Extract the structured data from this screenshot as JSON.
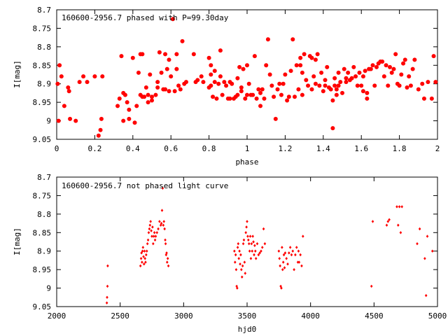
{
  "colors": {
    "points": "#ff0000",
    "axes": "#000000",
    "background": "#ffffff"
  },
  "chart_data": [
    {
      "type": "scatter",
      "title": "160600-2956.7 phased with P=99.30day",
      "xlabel": "phase",
      "ylabel": "I[mag]",
      "xlim": [
        0,
        2
      ],
      "ylim": [
        9.05,
        8.7
      ],
      "y_inverted": true,
      "grid": false,
      "marker": "filled-circle-large",
      "xticks": [
        "0",
        "0.2",
        "0.4",
        "0.6",
        "0.8",
        "1",
        "1.2",
        "1.4",
        "1.6",
        "1.8",
        "2"
      ],
      "yticks": [
        "8.7",
        "8.75",
        "8.8",
        "8.85",
        "8.9",
        "8.95",
        "9",
        "9.05"
      ],
      "points": [
        [
          0.005,
          8.9
        ],
        [
          0.01,
          9.0
        ],
        [
          0.015,
          8.85
        ],
        [
          0.025,
          8.88
        ],
        [
          0.04,
          8.96
        ],
        [
          0.06,
          8.91
        ],
        [
          0.065,
          8.92
        ],
        [
          0.07,
          8.995
        ],
        [
          0.1,
          9.0
        ],
        [
          0.12,
          8.895
        ],
        [
          0.14,
          8.88
        ],
        [
          0.16,
          8.895
        ],
        [
          0.2,
          8.88
        ],
        [
          0.22,
          9.04
        ],
        [
          0.23,
          9.025
        ],
        [
          0.235,
          8.995
        ],
        [
          0.24,
          8.88
        ],
        [
          0.32,
          8.96
        ],
        [
          0.33,
          8.94
        ],
        [
          0.34,
          8.825
        ],
        [
          0.35,
          9.0
        ],
        [
          0.35,
          8.925
        ],
        [
          0.36,
          8.93
        ],
        [
          0.37,
          8.95
        ],
        [
          0.38,
          8.97
        ],
        [
          0.38,
          8.995
        ],
        [
          0.4,
          8.83
        ],
        [
          0.41,
          9.005
        ],
        [
          0.42,
          8.96
        ],
        [
          0.43,
          8.87
        ],
        [
          0.44,
          8.82
        ],
        [
          0.44,
          8.93
        ],
        [
          0.45,
          8.82
        ],
        [
          0.45,
          8.935
        ],
        [
          0.46,
          8.935
        ],
        [
          0.47,
          8.91
        ],
        [
          0.48,
          8.93
        ],
        [
          0.48,
          8.95
        ],
        [
          0.49,
          8.875
        ],
        [
          0.5,
          8.935
        ],
        [
          0.5,
          8.945
        ],
        [
          0.52,
          8.93
        ],
        [
          0.53,
          8.895
        ],
        [
          0.53,
          8.91
        ],
        [
          0.54,
          8.815
        ],
        [
          0.55,
          8.87
        ],
        [
          0.56,
          8.915
        ],
        [
          0.57,
          8.82
        ],
        [
          0.57,
          8.915
        ],
        [
          0.58,
          8.86
        ],
        [
          0.59,
          8.92
        ],
        [
          0.59,
          8.835
        ],
        [
          0.6,
          8.88
        ],
        [
          0.61,
          8.725
        ],
        [
          0.62,
          8.92
        ],
        [
          0.63,
          8.86
        ],
        [
          0.63,
          8.82
        ],
        [
          0.64,
          8.905
        ],
        [
          0.65,
          8.915
        ],
        [
          0.66,
          8.785
        ],
        [
          0.67,
          8.9
        ],
        [
          0.68,
          8.895
        ],
        [
          0.72,
          8.82
        ],
        [
          0.73,
          8.895
        ],
        [
          0.74,
          8.89
        ],
        [
          0.76,
          8.88
        ],
        [
          0.77,
          8.895
        ],
        [
          0.8,
          8.91
        ],
        [
          0.8,
          8.83
        ],
        [
          0.81,
          8.905
        ],
        [
          0.81,
          8.875
        ],
        [
          0.81,
          8.85
        ],
        [
          0.82,
          8.935
        ],
        [
          0.83,
          8.895
        ],
        [
          0.83,
          8.865
        ],
        [
          0.84,
          8.94
        ],
        [
          0.85,
          8.9
        ],
        [
          0.86,
          8.88
        ],
        [
          0.86,
          8.81
        ],
        [
          0.87,
          8.93
        ],
        [
          0.88,
          8.895
        ],
        [
          0.89,
          8.905
        ],
        [
          0.9,
          8.94
        ],
        [
          0.91,
          8.895
        ],
        [
          0.91,
          8.94
        ],
        [
          0.92,
          8.9
        ],
        [
          0.93,
          8.94
        ],
        [
          0.94,
          8.935
        ],
        [
          0.95,
          8.93
        ],
        [
          0.95,
          8.885
        ],
        [
          0.96,
          8.855
        ],
        [
          0.97,
          8.92
        ],
        [
          0.97,
          8.91
        ],
        [
          0.98,
          8.86
        ],
        [
          0.99,
          8.94
        ],
        [
          1.0,
          8.85
        ],
        [
          1.0,
          8.93
        ],
        [
          1.01,
          8.9
        ],
        [
          1.02,
          8.93
        ],
        [
          1.03,
          8.93
        ],
        [
          1.04,
          8.825
        ],
        [
          1.05,
          8.94
        ],
        [
          1.06,
          8.915
        ],
        [
          1.07,
          8.96
        ],
        [
          1.07,
          8.925
        ],
        [
          1.08,
          8.915
        ],
        [
          1.09,
          8.94
        ],
        [
          1.1,
          8.85
        ],
        [
          1.11,
          8.78
        ],
        [
          1.12,
          8.875
        ],
        [
          1.13,
          8.905
        ],
        [
          1.14,
          8.935
        ],
        [
          1.15,
          8.995
        ],
        [
          1.16,
          8.915
        ],
        [
          1.17,
          8.9
        ],
        [
          1.18,
          8.93
        ],
        [
          1.19,
          8.9
        ],
        [
          1.2,
          8.875
        ],
        [
          1.21,
          8.945
        ],
        [
          1.22,
          8.935
        ],
        [
          1.23,
          8.865
        ],
        [
          1.24,
          8.78
        ],
        [
          1.25,
          8.935
        ],
        [
          1.26,
          8.85
        ],
        [
          1.27,
          8.915
        ],
        [
          1.28,
          8.85
        ],
        [
          1.28,
          8.83
        ],
        [
          1.29,
          8.93
        ],
        [
          1.29,
          8.87
        ],
        [
          1.3,
          8.82
        ],
        [
          1.31,
          8.89
        ],
        [
          1.32,
          8.905
        ],
        [
          1.33,
          8.825
        ],
        [
          1.34,
          8.915
        ],
        [
          1.34,
          8.83
        ],
        [
          1.35,
          8.88
        ],
        [
          1.36,
          8.9
        ],
        [
          1.36,
          8.835
        ],
        [
          1.37,
          8.82
        ],
        [
          1.38,
          8.905
        ],
        [
          1.39,
          8.87
        ],
        [
          1.4,
          8.92
        ],
        [
          1.41,
          8.905
        ],
        [
          1.41,
          8.89
        ],
        [
          1.42,
          8.855
        ],
        [
          1.43,
          8.91
        ],
        [
          1.44,
          8.915
        ],
        [
          1.45,
          9.02
        ],
        [
          1.45,
          8.945
        ],
        [
          1.46,
          8.905
        ],
        [
          1.46,
          8.885
        ],
        [
          1.47,
          8.915
        ],
        [
          1.47,
          8.93
        ],
        [
          1.48,
          8.905
        ],
        [
          1.48,
          8.87
        ],
        [
          1.49,
          8.895
        ],
        [
          1.5,
          8.925
        ],
        [
          1.51,
          8.86
        ],
        [
          1.52,
          8.895
        ],
        [
          1.52,
          8.885
        ],
        [
          1.53,
          8.87
        ],
        [
          1.54,
          8.89
        ],
        [
          1.55,
          8.885
        ],
        [
          1.56,
          8.855
        ],
        [
          1.57,
          8.88
        ],
        [
          1.58,
          8.905
        ],
        [
          1.59,
          8.87
        ],
        [
          1.6,
          8.905
        ],
        [
          1.61,
          8.92
        ],
        [
          1.61,
          8.88
        ],
        [
          1.62,
          8.865
        ],
        [
          1.63,
          8.925
        ],
        [
          1.63,
          8.94
        ],
        [
          1.64,
          8.86
        ],
        [
          1.65,
          8.86
        ],
        [
          1.66,
          8.85
        ],
        [
          1.67,
          8.905
        ],
        [
          1.68,
          8.855
        ],
        [
          1.69,
          8.845
        ],
        [
          1.7,
          8.84
        ],
        [
          1.71,
          8.84
        ],
        [
          1.72,
          8.88
        ],
        [
          1.73,
          8.85
        ],
        [
          1.74,
          8.905
        ],
        [
          1.75,
          8.855
        ],
        [
          1.76,
          8.87
        ],
        [
          1.77,
          8.86
        ],
        [
          1.78,
          8.82
        ],
        [
          1.79,
          8.9
        ],
        [
          1.8,
          8.905
        ],
        [
          1.81,
          8.875
        ],
        [
          1.82,
          8.845
        ],
        [
          1.83,
          8.835
        ],
        [
          1.84,
          8.91
        ],
        [
          1.85,
          8.88
        ],
        [
          1.86,
          8.905
        ],
        [
          1.87,
          8.86
        ],
        [
          1.88,
          8.835
        ],
        [
          1.9,
          8.915
        ],
        [
          1.92,
          8.9
        ],
        [
          1.93,
          8.94
        ],
        [
          1.95,
          8.895
        ],
        [
          1.97,
          8.94
        ],
        [
          1.98,
          8.825
        ],
        [
          1.99,
          8.895
        ]
      ]
    },
    {
      "type": "scatter",
      "title": "160600-2956.7 not phased light curve",
      "xlabel": "hjd0",
      "ylabel": "I[mag]",
      "xlim": [
        2000,
        5000
      ],
      "ylim": [
        9.05,
        8.7
      ],
      "y_inverted": true,
      "grid": false,
      "marker": "filled-diamond-small",
      "xticks": [
        "2000",
        "2500",
        "3000",
        "3500",
        "4000",
        "4500",
        "5000"
      ],
      "yticks": [
        "8.7",
        "8.75",
        "8.8",
        "8.85",
        "8.9",
        "8.95",
        "9",
        "9.05"
      ],
      "points": [
        [
          2395,
          9.04
        ],
        [
          2397,
          9.025
        ],
        [
          2400,
          8.995
        ],
        [
          2402,
          8.94
        ],
        [
          2660,
          8.94
        ],
        [
          2665,
          8.92
        ],
        [
          2668,
          8.905
        ],
        [
          2672,
          8.93
        ],
        [
          2676,
          8.9
        ],
        [
          2680,
          8.89
        ],
        [
          2684,
          8.915
        ],
        [
          2688,
          8.935
        ],
        [
          2692,
          8.9
        ],
        [
          2696,
          8.92
        ],
        [
          2700,
          8.93
        ],
        [
          2705,
          8.91
        ],
        [
          2710,
          8.9
        ],
        [
          2715,
          8.88
        ],
        [
          2720,
          8.87
        ],
        [
          2725,
          8.85
        ],
        [
          2730,
          8.84
        ],
        [
          2735,
          8.83
        ],
        [
          2740,
          8.82
        ],
        [
          2745,
          8.845
        ],
        [
          2750,
          8.86
        ],
        [
          2755,
          8.835
        ],
        [
          2760,
          8.88
        ],
        [
          2765,
          8.86
        ],
        [
          2770,
          8.85
        ],
        [
          2775,
          8.87
        ],
        [
          2780,
          8.86
        ],
        [
          2790,
          8.85
        ],
        [
          2800,
          8.84
        ],
        [
          2810,
          8.82
        ],
        [
          2820,
          8.83
        ],
        [
          2825,
          8.825
        ],
        [
          2830,
          8.79
        ],
        [
          2835,
          8.73
        ],
        [
          2840,
          8.83
        ],
        [
          2845,
          8.82
        ],
        [
          2850,
          8.84
        ],
        [
          2855,
          8.87
        ],
        [
          2858,
          8.88
        ],
        [
          2862,
          8.91
        ],
        [
          2866,
          8.905
        ],
        [
          2870,
          8.93
        ],
        [
          2875,
          8.92
        ],
        [
          2880,
          8.94
        ],
        [
          3400,
          8.9
        ],
        [
          3405,
          8.93
        ],
        [
          3410,
          8.91
        ],
        [
          3414,
          8.95
        ],
        [
          3418,
          8.995
        ],
        [
          3422,
          9.0
        ],
        [
          3426,
          8.89
        ],
        [
          3430,
          8.88
        ],
        [
          3435,
          8.92
        ],
        [
          3440,
          8.9
        ],
        [
          3445,
          8.935
        ],
        [
          3450,
          8.91
        ],
        [
          3455,
          8.95
        ],
        [
          3460,
          8.97
        ],
        [
          3465,
          8.94
        ],
        [
          3470,
          8.88
        ],
        [
          3475,
          8.87
        ],
        [
          3480,
          8.93
        ],
        [
          3485,
          8.96
        ],
        [
          3490,
          8.85
        ],
        [
          3495,
          8.835
        ],
        [
          3500,
          8.82
        ],
        [
          3505,
          8.86
        ],
        [
          3510,
          8.87
        ],
        [
          3515,
          8.88
        ],
        [
          3520,
          8.9
        ],
        [
          3525,
          8.86
        ],
        [
          3530,
          8.92
        ],
        [
          3535,
          8.88
        ],
        [
          3540,
          8.9
        ],
        [
          3545,
          8.86
        ],
        [
          3550,
          8.875
        ],
        [
          3555,
          8.91
        ],
        [
          3560,
          8.885
        ],
        [
          3565,
          8.9
        ],
        [
          3570,
          8.92
        ],
        [
          3580,
          8.88
        ],
        [
          3590,
          8.91
        ],
        [
          3600,
          8.905
        ],
        [
          3610,
          8.9
        ],
        [
          3620,
          8.89
        ],
        [
          3630,
          8.84
        ],
        [
          3640,
          8.88
        ],
        [
          3750,
          8.9
        ],
        [
          3755,
          8.92
        ],
        [
          3760,
          8.94
        ],
        [
          3765,
          8.995
        ],
        [
          3770,
          9.0
        ],
        [
          3775,
          8.89
        ],
        [
          3780,
          8.95
        ],
        [
          3785,
          8.93
        ],
        [
          3790,
          8.91
        ],
        [
          3795,
          8.945
        ],
        [
          3800,
          8.905
        ],
        [
          3810,
          8.92
        ],
        [
          3820,
          8.935
        ],
        [
          3830,
          8.905
        ],
        [
          3840,
          8.89
        ],
        [
          3850,
          8.91
        ],
        [
          3860,
          8.9
        ],
        [
          3870,
          8.95
        ],
        [
          3880,
          8.91
        ],
        [
          3890,
          8.89
        ],
        [
          3900,
          8.93
        ],
        [
          3905,
          8.9
        ],
        [
          3910,
          8.93
        ],
        [
          3920,
          8.91
        ],
        [
          3930,
          8.94
        ],
        [
          3940,
          8.86
        ],
        [
          4480,
          8.995
        ],
        [
          4490,
          8.82
        ],
        [
          4600,
          8.83
        ],
        [
          4610,
          8.82
        ],
        [
          4620,
          8.815
        ],
        [
          4680,
          8.78
        ],
        [
          4690,
          8.83
        ],
        [
          4700,
          8.78
        ],
        [
          4710,
          8.85
        ],
        [
          4720,
          8.78
        ],
        [
          4840,
          8.88
        ],
        [
          4860,
          8.84
        ],
        [
          4900,
          8.92
        ],
        [
          4910,
          9.02
        ],
        [
          4920,
          8.86
        ],
        [
          4960,
          8.9
        ]
      ]
    }
  ]
}
